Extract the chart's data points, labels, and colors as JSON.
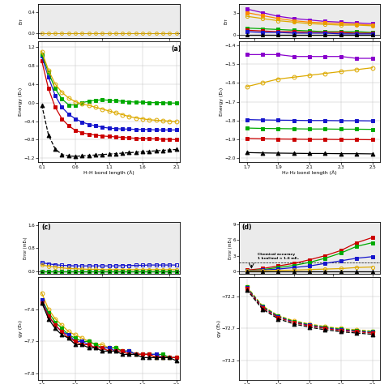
{
  "colors": {
    "black": "#000000",
    "red": "#cc0000",
    "blue": "#1515cc",
    "green": "#00aa00",
    "yellow": "#ddaa00",
    "purple": "#8800cc",
    "orange": "#ff8800",
    "cyan": "#00aaaa"
  },
  "h2_x": [
    0.1,
    0.2,
    0.3,
    0.4,
    0.5,
    0.6,
    0.7,
    0.8,
    0.9,
    1.0,
    1.1,
    1.2,
    1.3,
    1.4,
    1.5,
    1.6,
    1.7,
    1.8,
    1.9,
    2.0,
    2.1
  ],
  "bh4_x": [
    1.7,
    1.8,
    1.9,
    2.0,
    2.1,
    2.2,
    2.3,
    2.4,
    2.5
  ],
  "background_gray": "#ebebeb",
  "panel_a": {
    "black": [
      -0.05,
      -0.7,
      -1.0,
      -1.12,
      -1.15,
      -1.16,
      -1.15,
      -1.14,
      -1.13,
      -1.12,
      -1.11,
      -1.1,
      -1.09,
      -1.08,
      -1.07,
      -1.06,
      -1.05,
      -1.04,
      -1.03,
      -1.02,
      -1.01
    ],
    "red": [
      0.9,
      0.3,
      -0.1,
      -0.35,
      -0.5,
      -0.6,
      -0.65,
      -0.68,
      -0.7,
      -0.72,
      -0.73,
      -0.74,
      -0.75,
      -0.76,
      -0.77,
      -0.77,
      -0.78,
      -0.78,
      -0.79,
      -0.79,
      -0.8
    ],
    "blue": [
      1.0,
      0.55,
      0.15,
      -0.1,
      -0.25,
      -0.35,
      -0.42,
      -0.47,
      -0.5,
      -0.53,
      -0.55,
      -0.56,
      -0.57,
      -0.57,
      -0.58,
      -0.58,
      -0.58,
      -0.59,
      -0.59,
      -0.59,
      -0.59
    ],
    "green": [
      1.05,
      0.65,
      0.3,
      0.08,
      -0.05,
      -0.05,
      0.0,
      0.03,
      0.05,
      0.06,
      0.05,
      0.04,
      0.03,
      0.02,
      0.01,
      0.01,
      0.0,
      0.0,
      0.0,
      -0.01,
      -0.01
    ],
    "yellow": [
      1.1,
      0.7,
      0.4,
      0.22,
      0.1,
      0.02,
      -0.03,
      -0.06,
      -0.1,
      -0.14,
      -0.18,
      -0.22,
      -0.26,
      -0.3,
      -0.33,
      -0.35,
      -0.37,
      -0.38,
      -0.39,
      -0.4,
      -0.41
    ]
  },
  "panel_b_energy": {
    "purple": [
      -1.45,
      -1.45,
      -1.45,
      -1.46,
      -1.46,
      -1.46,
      -1.46,
      -1.47,
      -1.47
    ],
    "yellow": [
      -1.62,
      -1.6,
      -1.58,
      -1.57,
      -1.56,
      -1.55,
      -1.54,
      -1.53,
      -1.52
    ],
    "blue": [
      -1.795,
      -1.797,
      -1.798,
      -1.799,
      -1.8,
      -1.8,
      -1.801,
      -1.801,
      -1.802
    ],
    "green": [
      -1.84,
      -1.842,
      -1.843,
      -1.844,
      -1.845,
      -1.845,
      -1.846,
      -1.846,
      -1.847
    ],
    "red": [
      -1.895,
      -1.897,
      -1.898,
      -1.899,
      -1.9,
      -1.9,
      -1.901,
      -1.901,
      -1.902
    ],
    "black": [
      -1.97,
      -1.972,
      -1.973,
      -1.974,
      -1.975,
      -1.975,
      -1.976,
      -1.976,
      -1.977
    ]
  },
  "panel_b_err": {
    "purple": [
      3.5,
      3.0,
      2.5,
      2.2,
      2.0,
      1.8,
      1.7,
      1.6,
      1.5
    ],
    "orange": [
      3.0,
      2.6,
      2.2,
      1.9,
      1.7,
      1.6,
      1.5,
      1.4,
      1.3
    ],
    "yellow": [
      2.5,
      2.2,
      1.9,
      1.7,
      1.5,
      1.4,
      1.3,
      1.3,
      1.2
    ],
    "green": [
      0.9,
      0.8,
      0.7,
      0.6,
      0.5,
      0.4,
      0.4,
      0.4,
      0.3
    ],
    "red": [
      0.6,
      0.5,
      0.4,
      0.4,
      0.3,
      0.3,
      0.3,
      0.2,
      0.2
    ],
    "blue": [
      0.4,
      0.3,
      0.3,
      0.2,
      0.2,
      0.2,
      0.1,
      0.1,
      0.1
    ],
    "black": [
      0.0,
      0.0,
      0.0,
      0.0,
      0.0,
      0.0,
      0.0,
      0.0,
      0.0
    ]
  },
  "panel_c_err": {
    "blue": [
      0.3,
      0.26,
      0.23,
      0.21,
      0.2,
      0.19,
      0.19,
      0.19,
      0.19,
      0.19,
      0.19,
      0.19,
      0.2,
      0.2,
      0.21,
      0.21,
      0.22,
      0.22,
      0.22,
      0.22,
      0.22
    ],
    "yellow": [
      0.22,
      0.18,
      0.15,
      0.12,
      0.1,
      0.09,
      0.08,
      0.07,
      0.07,
      0.06,
      0.06,
      0.06,
      0.06,
      0.06,
      0.06,
      0.06,
      0.06,
      0.06,
      0.06,
      0.06,
      0.06
    ],
    "black": [
      0.0,
      0.0,
      0.0,
      0.0,
      0.0,
      0.0,
      0.0,
      0.0,
      0.0,
      0.0,
      0.0,
      0.0,
      0.0,
      0.0,
      0.0,
      0.0,
      0.0,
      0.0,
      0.0,
      0.0,
      0.0
    ],
    "green": [
      0.0,
      0.0,
      0.0,
      0.0,
      0.0,
      0.0,
      0.0,
      0.0,
      0.0,
      0.0,
      0.0,
      0.0,
      0.0,
      0.0,
      0.0,
      0.0,
      0.0,
      0.0,
      0.0,
      0.0,
      0.0
    ]
  },
  "panel_c_energy": {
    "yellow": [
      -7.55,
      -7.6,
      -7.63,
      -7.65,
      -7.67,
      -7.68,
      -7.69,
      -7.7,
      -7.71,
      -7.71,
      -7.72,
      -7.72,
      -7.73,
      -7.73,
      -7.74,
      -7.74,
      -7.74,
      -7.75,
      -7.75,
      -7.75,
      -7.75
    ],
    "green": [
      -7.57,
      -7.61,
      -7.64,
      -7.66,
      -7.68,
      -7.69,
      -7.7,
      -7.7,
      -7.71,
      -7.72,
      -7.72,
      -7.72,
      -7.73,
      -7.73,
      -7.74,
      -7.74,
      -7.74,
      -7.74,
      -7.74,
      -7.75,
      -7.75
    ],
    "blue": [
      -7.57,
      -7.62,
      -7.65,
      -7.67,
      -7.68,
      -7.7,
      -7.7,
      -7.71,
      -7.72,
      -7.72,
      -7.72,
      -7.73,
      -7.73,
      -7.73,
      -7.74,
      -7.74,
      -7.74,
      -7.74,
      -7.75,
      -7.75,
      -7.75
    ],
    "red": [
      -7.58,
      -7.62,
      -7.65,
      -7.67,
      -7.69,
      -7.7,
      -7.71,
      -7.71,
      -7.72,
      -7.72,
      -7.73,
      -7.73,
      -7.73,
      -7.74,
      -7.74,
      -7.74,
      -7.74,
      -7.75,
      -7.75,
      -7.75,
      -7.75
    ],
    "black": [
      -7.58,
      -7.63,
      -7.66,
      -7.68,
      -7.69,
      -7.71,
      -7.71,
      -7.72,
      -7.72,
      -7.73,
      -7.73,
      -7.73,
      -7.74,
      -7.74,
      -7.74,
      -7.75,
      -7.75,
      -7.75,
      -7.75,
      -7.75,
      -7.76
    ]
  },
  "panel_d_err": {
    "red": [
      0.2,
      0.5,
      1.0,
      1.5,
      2.2,
      3.0,
      4.0,
      5.5,
      6.5
    ],
    "green": [
      0.1,
      0.3,
      0.7,
      1.1,
      1.7,
      2.5,
      3.5,
      4.8,
      5.5
    ],
    "blue": [
      0.1,
      0.2,
      0.4,
      0.7,
      1.0,
      1.5,
      2.0,
      2.5,
      2.8
    ],
    "yellow": [
      0.05,
      0.1,
      0.15,
      0.2,
      0.3,
      0.4,
      0.5,
      0.7,
      0.8
    ],
    "black": [
      0.0,
      0.0,
      0.0,
      0.0,
      0.0,
      0.0,
      0.0,
      0.0,
      0.0
    ]
  },
  "panel_d_energy": {
    "yellow": [
      -72.05,
      -72.35,
      -72.5,
      -72.58,
      -72.63,
      -72.67,
      -72.7,
      -72.72,
      -72.74
    ],
    "green": [
      -72.06,
      -72.36,
      -72.51,
      -72.59,
      -72.64,
      -72.68,
      -72.71,
      -72.73,
      -72.75
    ],
    "blue": [
      -72.07,
      -72.37,
      -72.52,
      -72.6,
      -72.65,
      -72.69,
      -72.72,
      -72.74,
      -72.76
    ],
    "red": [
      -72.08,
      -72.38,
      -72.53,
      -72.61,
      -72.66,
      -72.7,
      -72.73,
      -72.75,
      -72.77
    ],
    "black": [
      -72.1,
      -72.4,
      -72.55,
      -72.63,
      -72.68,
      -72.72,
      -72.75,
      -72.77,
      -72.79
    ]
  }
}
